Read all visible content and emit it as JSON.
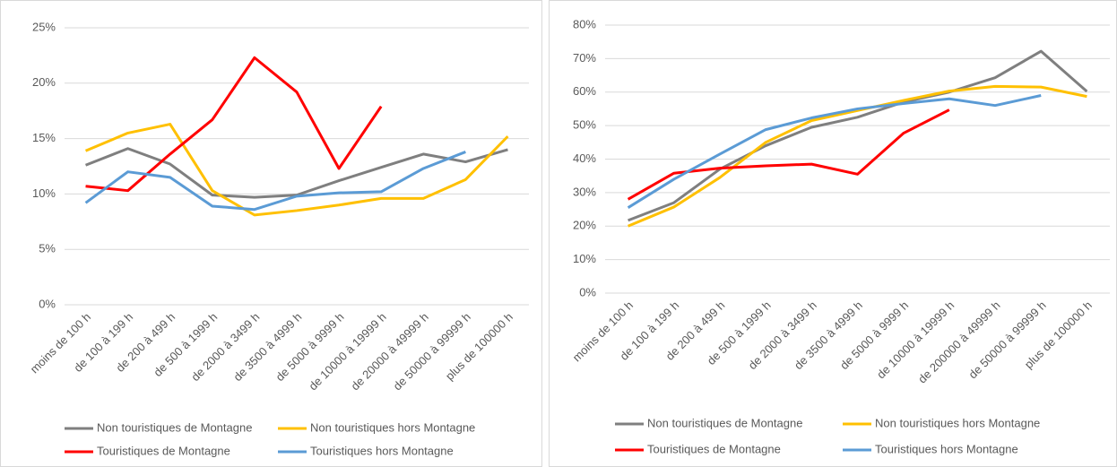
{
  "chart_data": [
    {
      "type": "line",
      "categories": [
        "moins de 100 h",
        "de 100 à 199 h",
        "de 200 à 499 h",
        "de 500 à 1999 h",
        "de 2000 à 3499 h",
        "de 3500 à 4999 h",
        "de 5000 à 9999 h",
        "de 10000 à 19999 h",
        "de 20000 à 49999 h",
        "de 50000 à 99999 h",
        "plus de 100000 h"
      ],
      "ylim": [
        0,
        25
      ],
      "yticks": [
        {
          "value": 0,
          "label": "0%"
        },
        {
          "value": 5,
          "label": "5%"
        },
        {
          "value": 10,
          "label": "10%"
        },
        {
          "value": 15,
          "label": "15%"
        },
        {
          "value": 20,
          "label": "20%"
        },
        {
          "value": 25,
          "label": "25%"
        }
      ],
      "grid": true,
      "series": [
        {
          "name": "Non touristiques de Montagne",
          "color": "#7f7f7f",
          "values": [
            12.6,
            14.1,
            12.7,
            9.9,
            9.7,
            9.9,
            11.2,
            12.4,
            13.6,
            12.9,
            14.0
          ]
        },
        {
          "name": "Non touristiques hors Montagne",
          "color": "#ffc000",
          "values": [
            13.9,
            15.5,
            16.3,
            10.3,
            8.1,
            8.5,
            9.0,
            9.6,
            9.6,
            11.3,
            15.2
          ]
        },
        {
          "name": "Touristiques de Montagne",
          "color": "#ff0000",
          "values": [
            10.7,
            10.3,
            13.6,
            16.7,
            22.3,
            19.2,
            12.3,
            17.9,
            null,
            null,
            null
          ]
        },
        {
          "name": "Touristiques hors Montagne",
          "color": "#5b9bd5",
          "values": [
            9.2,
            12.0,
            11.5,
            8.9,
            8.6,
            9.8,
            10.1,
            10.2,
            12.3,
            13.8,
            null
          ]
        }
      ]
    },
    {
      "type": "line",
      "categories": [
        "moins de 100 h",
        "de 100 à 199 h",
        "de 200 à 499 h",
        "de 500 à 1999 h",
        "de 2000 à 3499 h",
        "de 3500 à 4999 h",
        "de 5000 à 9999 h",
        "de 10000 à 19999 h",
        "de 200000 à 49999 h",
        "de 50000 à 99999 h",
        "plus de 100000 h"
      ],
      "ylim": [
        0,
        80
      ],
      "yticks": [
        {
          "value": 0,
          "label": "0%"
        },
        {
          "value": 10,
          "label": "10%"
        },
        {
          "value": 20,
          "label": "20%"
        },
        {
          "value": 30,
          "label": "30%"
        },
        {
          "value": 40,
          "label": "40%"
        },
        {
          "value": 50,
          "label": "50%"
        },
        {
          "value": 60,
          "label": "60%"
        },
        {
          "value": 70,
          "label": "70%"
        },
        {
          "value": 80,
          "label": "80%"
        }
      ],
      "grid": true,
      "series": [
        {
          "name": "Non touristiques de Montagne",
          "color": "#7f7f7f",
          "values": [
            21.7,
            27.0,
            37.0,
            44.0,
            49.5,
            52.5,
            57.0,
            60.0,
            64.3,
            72.2,
            60.2
          ]
        },
        {
          "name": "Non touristiques hors Montagne",
          "color": "#ffc000",
          "values": [
            20.0,
            25.7,
            34.5,
            45.0,
            51.5,
            54.5,
            57.5,
            60.3,
            61.7,
            61.5,
            58.7
          ]
        },
        {
          "name": "Touristiques de Montagne",
          "color": "#ff0000",
          "values": [
            28.0,
            35.8,
            37.3,
            38.0,
            38.5,
            35.5,
            47.7,
            54.7,
            null,
            null,
            null
          ]
        },
        {
          "name": "Touristiques hors Montagne",
          "color": "#5b9bd5",
          "values": [
            25.5,
            34.0,
            41.5,
            48.8,
            52.3,
            55.0,
            56.6,
            58.0,
            56.0,
            59.0,
            null
          ]
        }
      ]
    }
  ]
}
